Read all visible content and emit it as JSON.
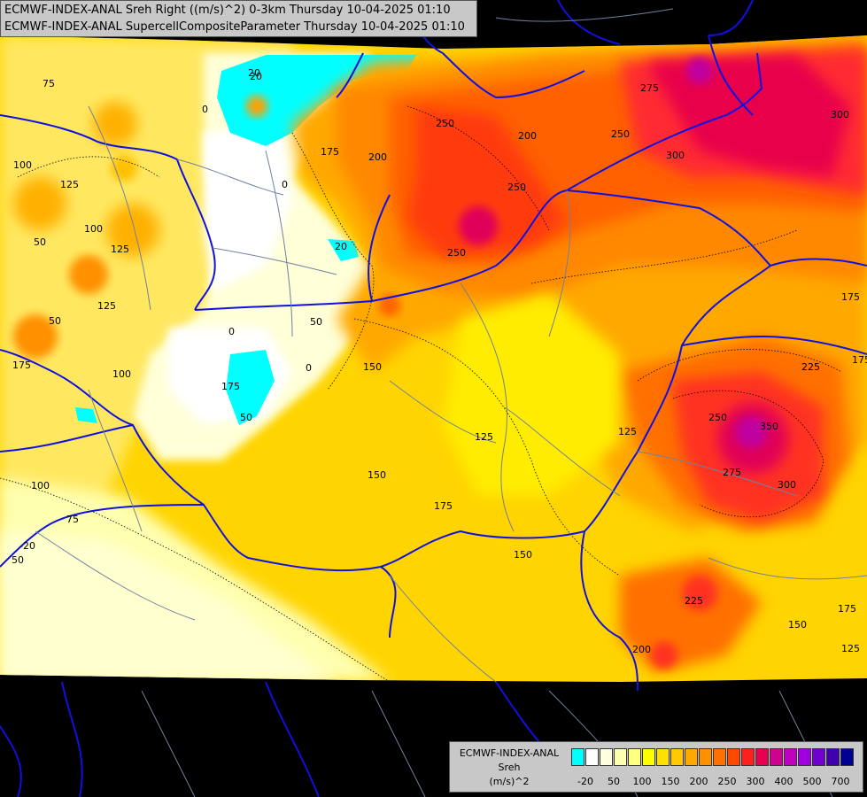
{
  "header": {
    "line1": "ECMWF-INDEX-ANAL Sreh Right ((m/s)^2) 0-3km Thursday 10-04-2025 01:10",
    "line2": "ECMWF-INDEX-ANAL SupercellCompositeParameter Thursday 10-04-2025 01:10"
  },
  "legend": {
    "title1": "ECMWF-INDEX-ANAL",
    "title2": "Sreh",
    "title3": "(m/s)^2",
    "colors": [
      "#00ffff",
      "#ffffff",
      "#ffffe0",
      "#ffffb0",
      "#ffff80",
      "#ffff00",
      "#ffe000",
      "#ffc800",
      "#ffa800",
      "#ff9000",
      "#ff7000",
      "#ff4800",
      "#ff2020",
      "#e80050",
      "#d00090",
      "#c000c0",
      "#a000e0",
      "#7000d0",
      "#4000b0",
      "#000090"
    ],
    "ticks": [
      "-20",
      "50",
      "100",
      "150",
      "200",
      "250",
      "300",
      "400",
      "500",
      "700"
    ]
  },
  "map": {
    "contour_labels": [
      "75",
      "100",
      "125",
      "50",
      "125",
      "100",
      "125",
      "175",
      "100",
      "100",
      "50",
      "75",
      "50",
      "0",
      "0",
      "0",
      "20",
      "20",
      "50",
      "50",
      "0",
      "20",
      "150",
      "175",
      "200",
      "250",
      "200",
      "250",
      "250",
      "275",
      "300",
      "250",
      "300",
      "175",
      "125",
      "150",
      "175",
      "125",
      "150",
      "175",
      "225",
      "250",
      "350",
      "275",
      "300",
      "175",
      "225",
      "200",
      "150",
      "175",
      "125",
      "-20"
    ]
  }
}
